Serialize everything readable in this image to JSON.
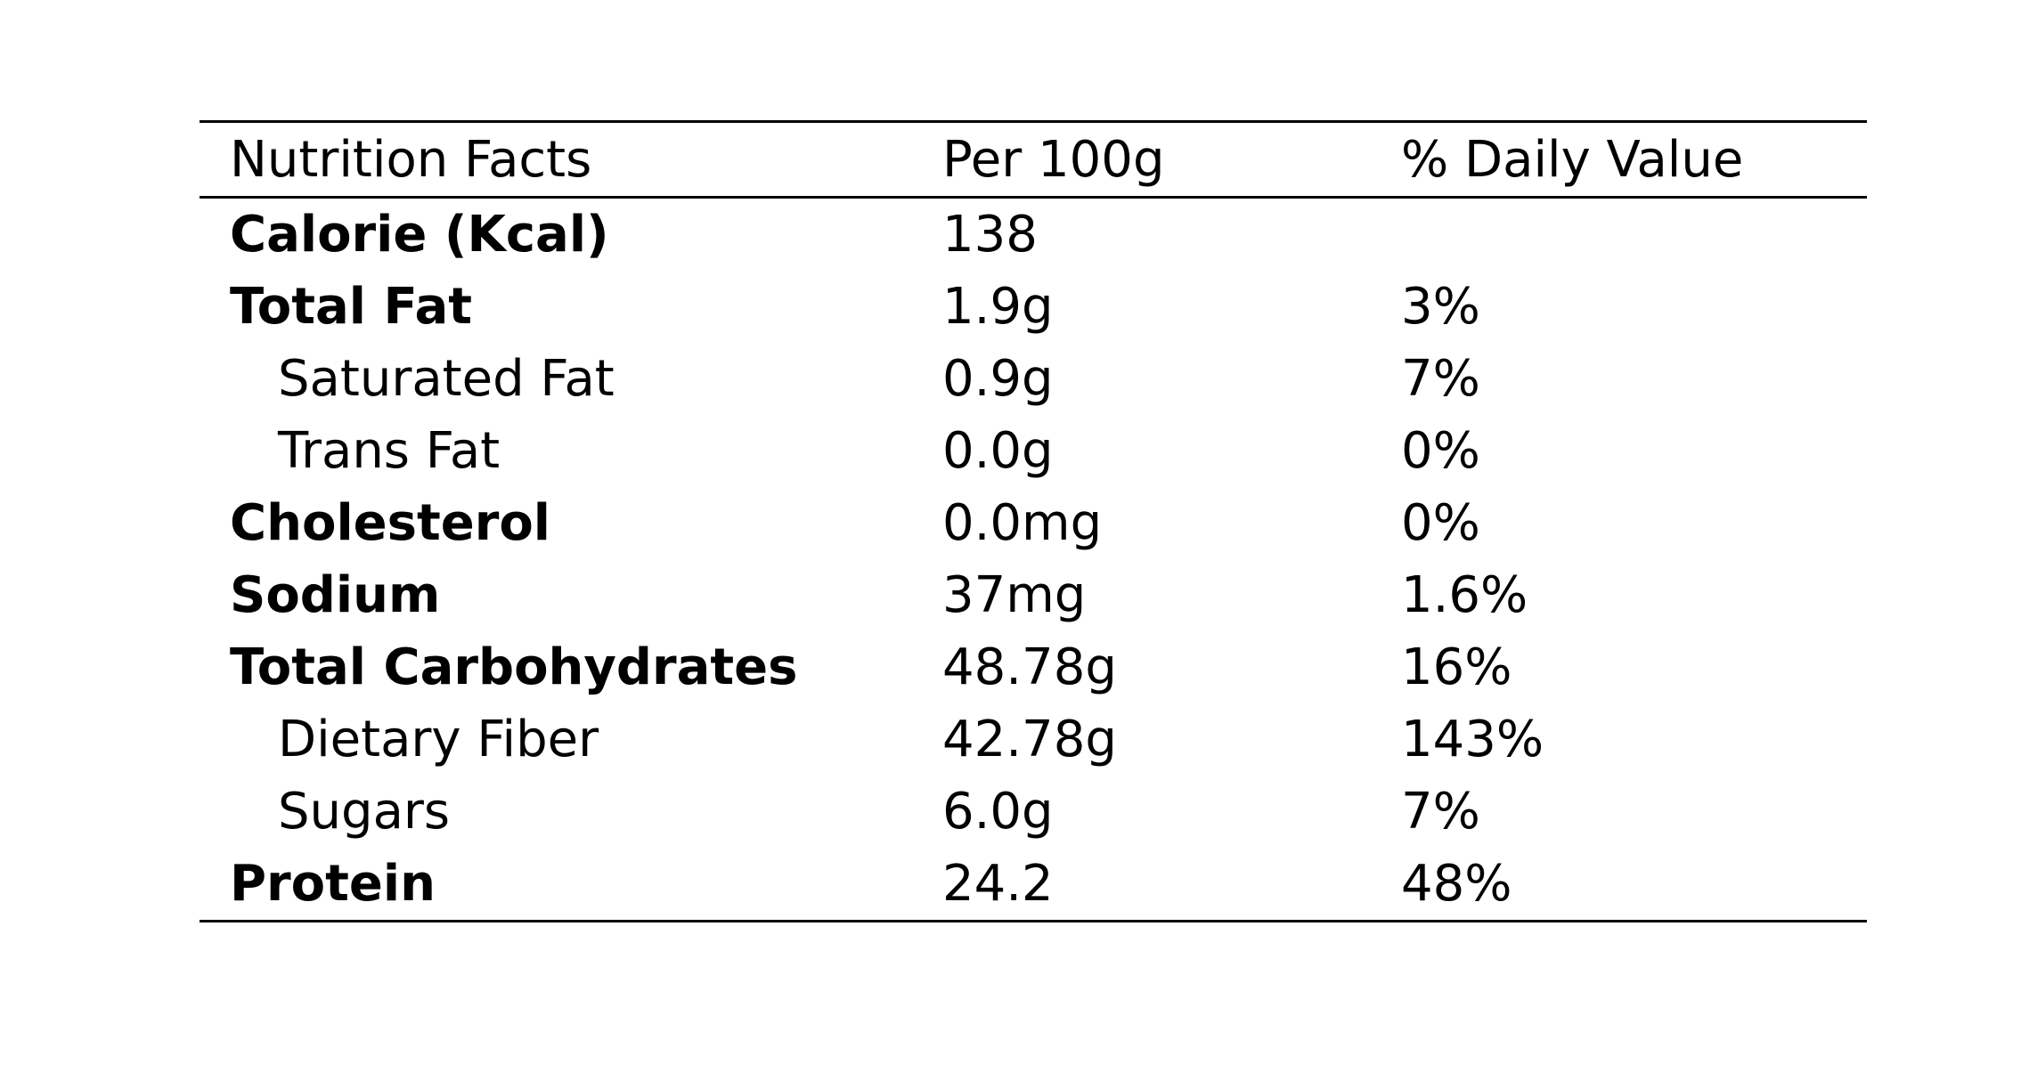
{
  "table": {
    "headers": [
      "Nutrition Facts",
      "Per 100g",
      "% Daily Value"
    ],
    "rows": [
      {
        "nutrient": "Calorie (Kcal)",
        "amount": "138",
        "daily_value": "",
        "bold": true,
        "indent": false
      },
      {
        "nutrient": "Total Fat",
        "amount": "1.9g",
        "daily_value": "3%",
        "bold": true,
        "indent": false
      },
      {
        "nutrient": "Saturated Fat",
        "amount": "0.9g",
        "daily_value": "7%",
        "bold": false,
        "indent": true
      },
      {
        "nutrient": "Trans Fat",
        "amount": "0.0g",
        "daily_value": "0%",
        "bold": false,
        "indent": true
      },
      {
        "nutrient": "Cholesterol",
        "amount": "0.0mg",
        "daily_value": "0%",
        "bold": true,
        "indent": false
      },
      {
        "nutrient": "Sodium",
        "amount": "37mg",
        "daily_value": "1.6%",
        "bold": true,
        "indent": false
      },
      {
        "nutrient": "Total Carbohydrates",
        "amount": "48.78g",
        "daily_value": "16%",
        "bold": true,
        "indent": false
      },
      {
        "nutrient": "Dietary Fiber",
        "amount": "42.78g",
        "daily_value": "143%",
        "bold": false,
        "indent": true
      },
      {
        "nutrient": "Sugars",
        "amount": "6.0g",
        "daily_value": "7%",
        "bold": false,
        "indent": true
      },
      {
        "nutrient": "Protein",
        "amount": "24.2",
        "daily_value": "48%",
        "bold": true,
        "indent": false
      }
    ]
  }
}
